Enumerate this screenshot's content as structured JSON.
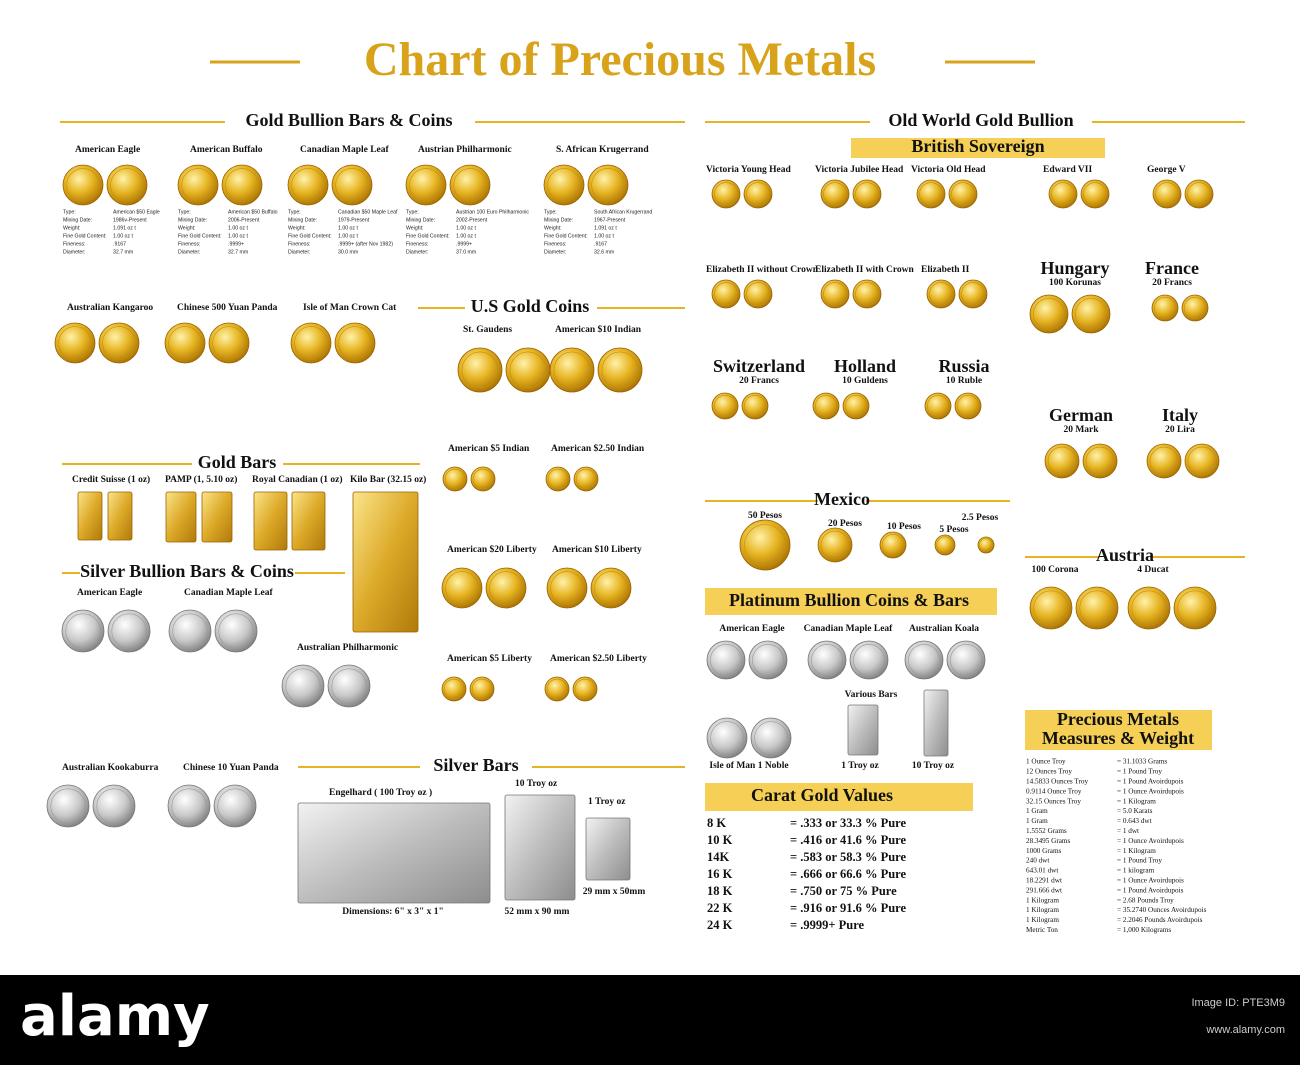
{
  "title": "Chart of Precious Metals",
  "spec_labels": [
    "Type:",
    "Mining Date:",
    "Weight:",
    "Fine Gold Content:",
    "Fineness:",
    "Diameter:"
  ],
  "gold_bullion": {
    "heading": "Gold Bullion Bars & Coins",
    "items": [
      {
        "name": "American Eagle",
        "specs": [
          "American $50 Eagle",
          "1986v-Present",
          "1.091 oz t",
          "1.00 oz t",
          ".9167",
          "32.7 mm"
        ]
      },
      {
        "name": "American Buffalo",
        "specs": [
          "American $50 Buffalo",
          "2006-Present",
          "1.00 oz t",
          "1.00 oz t",
          ".9999+",
          "32.7 mm"
        ]
      },
      {
        "name": "Canadian Maple Leaf",
        "specs": [
          "Canadian $50 Maple Leaf",
          "1979-Present",
          "1.00 oz t",
          "1.00 oz t",
          ".9999+ (after Nov 1982)",
          "30.0 mm"
        ]
      },
      {
        "name": "Austrian Philharmonic",
        "specs": [
          "Austrian 100 Euro Philharmonic",
          "2002-Present",
          "1.00 oz t",
          "1.00 oz t",
          ".9999+",
          "37.0 mm"
        ]
      },
      {
        "name": "S. African Krugerrand",
        "specs": [
          "South African Krugerrand",
          "1967-Present",
          "1.091 oz t",
          "1.00 oz t",
          ".9167",
          "32.6 mm"
        ]
      },
      {
        "name": "Australian Kangaroo"
      },
      {
        "name": "Chinese 500 Yuan Panda"
      },
      {
        "name": "Isle of Man Crown Cat"
      }
    ]
  },
  "gold_bars": {
    "heading": "Gold Bars",
    "items": [
      "Credit Suisse (1 oz)",
      "PAMP (1, 5.10 oz)",
      "Royal Canadian (1 oz)",
      "Kilo Bar (32.15 oz)"
    ]
  },
  "silver_bullion": {
    "heading": "Silver Bullion Bars & Coins",
    "items": [
      "American Eagle",
      "Canadian Maple Leaf",
      "Australian Philharmonic",
      "Australian Kookaburra",
      "Chinese 10 Yuan Panda"
    ]
  },
  "us_gold": {
    "heading": "U.S Gold Coins",
    "items": [
      "St. Gaudens",
      "American $10 Indian",
      "American $5 Indian",
      "American $2.50 Indian",
      "American $20 Liberty",
      "American $10 Liberty",
      "American $5 Liberty",
      "American $2.50 Liberty"
    ]
  },
  "silver_bars": {
    "heading": "Silver Bars",
    "items": [
      "Engelhard ( 100 Troy oz )",
      "10 Troy oz",
      "1 Troy oz"
    ],
    "notes": [
      "Dimensions: 6\" x 3\" x 1\"",
      "52 mm x 90 mm",
      "29 mm x 50mm"
    ]
  },
  "old_world": {
    "heading": "Old World Gold Bullion",
    "subheading": "British Sovereign",
    "items": [
      "Victoria Young Head",
      "Victoria Jubilee Head",
      "Victoria Old Head",
      "Edward VII",
      "George V",
      "Elizabeth II without Crown",
      "Elizabeth II with Crown",
      "Elizabeth II"
    ],
    "countries": [
      {
        "name": "Hungary",
        "coin": "100 Korunas"
      },
      {
        "name": "France",
        "coin": "20 Francs"
      },
      {
        "name": "Switzerland",
        "coin": "20 Francs"
      },
      {
        "name": "Holland",
        "coin": "10 Guldens"
      },
      {
        "name": "Russia",
        "coin": "10 Ruble"
      },
      {
        "name": "German",
        "coin": "20 Mark"
      },
      {
        "name": "Italy",
        "coin": "20 Lira"
      }
    ],
    "mexico": {
      "name": "Mexico",
      "coins": [
        "50 Pesos",
        "20 Pesos",
        "10 Pesos",
        "5 Pesos",
        "2.5 Pesos"
      ]
    },
    "austria": {
      "name": "Austria",
      "coins": [
        "100 Corona",
        "4 Ducat"
      ]
    }
  },
  "platinum": {
    "heading": "Platinum Bullion Coins & Bars",
    "items": [
      "American Eagle",
      "Canadian Maple Leaf",
      "Australian Koala",
      "Various Bars",
      "Isle of Man 1 Noble",
      "1 Troy oz",
      "10 Troy oz"
    ]
  },
  "carat": {
    "heading": "Carat Gold Values",
    "rows": [
      [
        "8 K",
        "= .333 or 33.3 % Pure"
      ],
      [
        "10 K",
        "= .416 or 41.6 % Pure"
      ],
      [
        "14K",
        "= .583 or 58.3 % Pure"
      ],
      [
        "16 K",
        "= .666 or 66.6 % Pure"
      ],
      [
        "18 K",
        "= .750 or 75 % Pure"
      ],
      [
        "22 K",
        "= .916 or 91.6 % Pure"
      ],
      [
        "24 K",
        "= .9999+ Pure"
      ]
    ]
  },
  "measures": {
    "heading": [
      "Precious Metals",
      "Measures & Weight"
    ],
    "rows": [
      [
        "1 Ounce Troy",
        "= 31.1033 Grams"
      ],
      [
        "12 Ounces Troy",
        "= 1 Pound Troy"
      ],
      [
        "14.5833 Ounces Troy",
        "= 1 Pound Avoirdupois"
      ],
      [
        "0.9114 Ounce Troy",
        "= 1 Ounce Avoirdupois"
      ],
      [
        "32.15 Ounces Troy",
        "= 1 Kilogram"
      ],
      [
        "1 Gram",
        "= 5.0 Karats"
      ],
      [
        "1 Gram",
        "= 0.643 dwt"
      ],
      [
        "1.5552 Grams",
        "= 1 dwt"
      ],
      [
        "28.3495 Grams",
        "= 1 Ounce Avoirdupois"
      ],
      [
        "1000 Grams",
        "= 1 Kilogram"
      ],
      [
        "240 dwt",
        "= 1 Pound Troy"
      ],
      [
        "643.01 dwt",
        "= 1 kilogram"
      ],
      [
        "18.2291 dwt",
        "= 1 Ounce Avoirdupois"
      ],
      [
        "291.666 dwt",
        "= 1 Pound Avoirdupois"
      ],
      [
        "1 Kilogram",
        "= 2.68 Pounds Troy"
      ],
      [
        "1 Kilogram",
        "= 35.2740 Ounces Avoirdupois"
      ],
      [
        "1 Kilogram",
        "= 2.2046 Pounds Avoirdupois"
      ],
      [
        "Metric Ton",
        "= 1,000 Kilograms"
      ]
    ]
  },
  "footer": {
    "logo": "alamy",
    "image_id": "Image ID: PTE3M9",
    "url": "www.alamy.com"
  }
}
